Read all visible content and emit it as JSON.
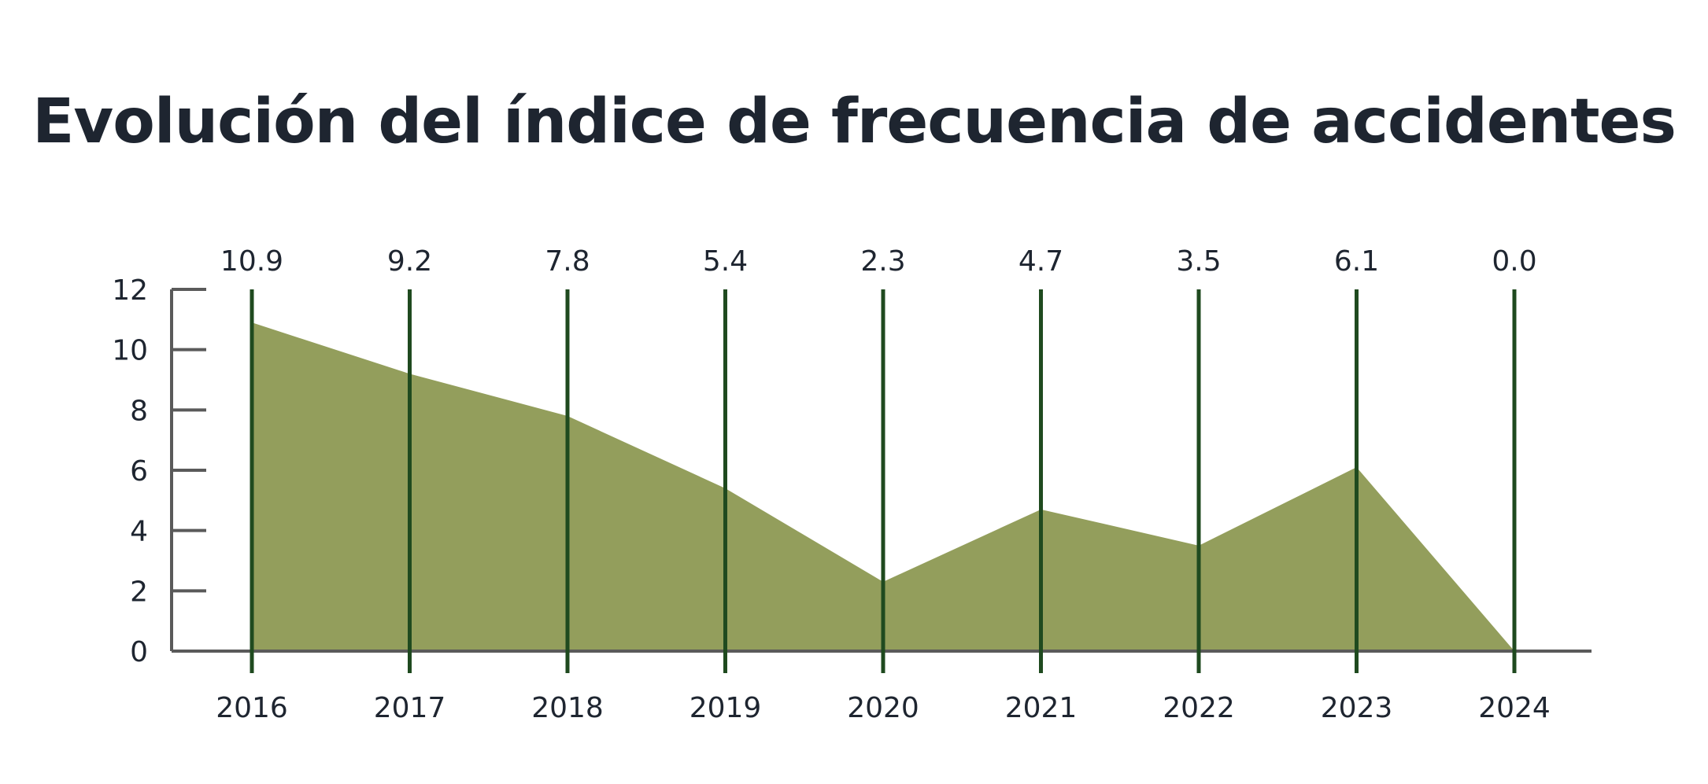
{
  "chart_data": {
    "type": "area",
    "title": "Evolución del índice de frecuencia de accidentes",
    "xlabel": "",
    "ylabel": "",
    "categories": [
      "2016",
      "2017",
      "2018",
      "2019",
      "2020",
      "2021",
      "2022",
      "2023",
      "2024"
    ],
    "values": [
      10.9,
      9.2,
      7.8,
      5.4,
      2.3,
      4.7,
      3.5,
      6.1,
      0.0
    ],
    "value_labels": [
      "10.9",
      "9.2",
      "7.8",
      "5.4",
      "2.3",
      "4.7",
      "3.5",
      "6.1",
      "0.0"
    ],
    "ylim": [
      0,
      12
    ],
    "yticks": [
      "0",
      "2",
      "4",
      "6",
      "8",
      "10",
      "12"
    ],
    "grid": false,
    "colors": {
      "area": "#939e5c",
      "drop_lines": "#1f4a1f",
      "axis": "#5a5a5a",
      "text": "#1e2530"
    }
  }
}
